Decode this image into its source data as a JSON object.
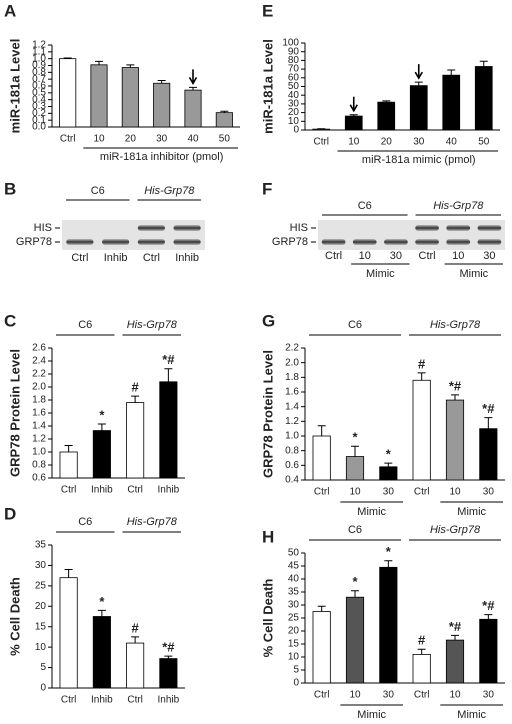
{
  "chart_data": [
    {
      "type": "bar",
      "label": "A",
      "ylabel": "miR-181a Level",
      "xlabel": "miR-181a inhibitor (pmol)",
      "categories": [
        "Ctrl",
        "10",
        "20",
        "30",
        "40",
        "50"
      ],
      "values": [
        1.0,
        0.91,
        0.87,
        0.64,
        0.54,
        0.21
      ],
      "errors": [
        0.01,
        0.05,
        0.04,
        0.04,
        0.04,
        0.02
      ],
      "colors": [
        "#ffffff",
        "#999999",
        "#999999",
        "#999999",
        "#999999",
        "#999999"
      ],
      "arrows": [
        false,
        false,
        false,
        false,
        true,
        false
      ],
      "ylim": [
        0,
        1.2
      ],
      "yticks": [
        {
          "value": 0,
          "label": "0.0"
        },
        {
          "value": 0.1,
          "label": "0.1"
        },
        {
          "value": 0.2,
          "label": "0.2"
        },
        {
          "value": 0.3,
          "label": "0.3"
        },
        {
          "value": 0.4,
          "label": "0.4"
        },
        {
          "value": 0.5,
          "label": "0.5"
        },
        {
          "value": 0.6,
          "label": "0.6"
        },
        {
          "value": 0.7,
          "label": "0.7"
        },
        {
          "value": 0.8,
          "label": "0.8"
        },
        {
          "value": 0.9,
          "label": "0.9"
        },
        {
          "value": 1,
          "label": "1.0"
        },
        {
          "value": 1.1,
          "label": "1.1"
        },
        {
          "value": 1.2,
          "label": "1.2"
        }
      ]
    },
    {
      "type": "bar",
      "label": "C",
      "ylabel": "GRP78 Protein Level",
      "categories": [
        "Ctrl",
        "Inhib",
        "Ctrl",
        "Inhib"
      ],
      "values": [
        1.0,
        1.33,
        1.76,
        2.08
      ],
      "errors": [
        0.1,
        0.1,
        0.1,
        0.2
      ],
      "colors": [
        "#ffffff",
        "#000000",
        "#ffffff",
        "#000000"
      ],
      "significance": [
        null,
        "*",
        "#",
        "*#"
      ],
      "groups": [
        {
          "name": "C6",
          "span": 2,
          "italic": false
        },
        {
          "name": "His-Grp78",
          "span": 2,
          "italic": true
        }
      ],
      "ylim": [
        0.6,
        2.6
      ],
      "yticks": [
        0.6,
        0.8,
        {
          "value": 1,
          "label": "1.0"
        },
        1.2,
        1.4,
        1.6,
        1.8,
        {
          "value": 2,
          "label": "2.0"
        },
        2.2,
        2.4,
        2.6
      ]
    },
    {
      "type": "bar",
      "label": "D",
      "ylabel": "% Cell Death",
      "categories": [
        "Ctrl",
        "Inhib",
        "Ctrl",
        "Inhib"
      ],
      "values": [
        27,
        17.5,
        11,
        7.2
      ],
      "errors": [
        2,
        1.5,
        1.5,
        0.6
      ],
      "colors": [
        "#ffffff",
        "#000000",
        "#ffffff",
        "#000000"
      ],
      "significance": [
        null,
        "*",
        "#",
        "*#"
      ],
      "groups": [
        {
          "name": "C6",
          "span": 2,
          "italic": false
        },
        {
          "name": "His-Grp78",
          "span": 2,
          "italic": true
        }
      ],
      "ylim": [
        0,
        35
      ],
      "yticks": [
        0,
        5,
        10,
        15,
        20,
        25,
        30,
        35
      ]
    },
    {
      "type": "bar",
      "label": "E",
      "ylabel": "miR-181a Level",
      "xlabel": "miR-181a mimic (pmol)",
      "categories": [
        "Ctrl",
        "10",
        "20",
        "30",
        "40",
        "50"
      ],
      "values": [
        1,
        16,
        32,
        51,
        63,
        73
      ],
      "errors": [
        0.5,
        1.5,
        1.5,
        4,
        6,
        6
      ],
      "colors": [
        "#ffffff",
        "#000000",
        "#000000",
        "#000000",
        "#000000",
        "#000000"
      ],
      "arrows": [
        false,
        true,
        false,
        true,
        false,
        false
      ],
      "ylim": [
        0,
        100
      ],
      "yticks": [
        0,
        10,
        20,
        30,
        40,
        50,
        60,
        70,
        80,
        90,
        100
      ]
    },
    {
      "type": "bar",
      "label": "G",
      "ylabel": "GRP78 Protein Level",
      "categories": [
        "Ctrl",
        "10",
        "30",
        "Ctrl",
        "10",
        "30"
      ],
      "values": [
        1.0,
        0.72,
        0.58,
        1.76,
        1.49,
        1.1
      ],
      "errors": [
        0.14,
        0.14,
        0.05,
        0.1,
        0.07,
        0.15
      ],
      "colors": [
        "#ffffff",
        "#999999",
        "#000000",
        "#ffffff",
        "#999999",
        "#000000"
      ],
      "significance": [
        null,
        "*",
        "*",
        "#",
        "*#",
        "*#"
      ],
      "groups": [
        {
          "name": "C6",
          "span": 3,
          "italic": false,
          "bracket": "Mimic"
        },
        {
          "name": "His-Grp78",
          "span": 3,
          "italic": true,
          "bracket": "Mimic"
        }
      ],
      "ylim": [
        0.4,
        2.2
      ],
      "yticks": [
        0.4,
        0.6,
        0.8,
        {
          "value": 1,
          "label": "1.0"
        },
        1.2,
        1.4,
        1.6,
        1.8,
        {
          "value": 2,
          "label": "2.0"
        },
        2.2
      ]
    },
    {
      "type": "bar",
      "label": "H",
      "ylabel": "% Cell Death",
      "categories": [
        "Ctrl",
        "10",
        "30",
        "Ctrl",
        "10",
        "30"
      ],
      "values": [
        27.5,
        33,
        44.5,
        11,
        16.5,
        24.5
      ],
      "errors": [
        2,
        2.5,
        2.5,
        2,
        1.8,
        1.8
      ],
      "colors": [
        "#ffffff",
        "#555555",
        "#000000",
        "#ffffff",
        "#555555",
        "#000000"
      ],
      "significance": [
        null,
        "*",
        "*",
        "#",
        "*#",
        "*#"
      ],
      "groups": [
        {
          "name": "C6",
          "span": 3,
          "italic": false,
          "bracket": "Mimic"
        },
        {
          "name": "His-Grp78",
          "span": 3,
          "italic": true,
          "bracket": "Mimic"
        }
      ],
      "ylim": [
        0,
        50
      ],
      "yticks": [
        0,
        5,
        10,
        15,
        20,
        25,
        30,
        35,
        40,
        45,
        50
      ]
    }
  ],
  "blots": [
    {
      "label": "B",
      "rows": [
        "HIS",
        "GRP78"
      ],
      "lanes": [
        "Ctrl",
        "Inhib",
        "Ctrl",
        "Inhib"
      ],
      "groups": [
        {
          "name": "C6",
          "span": 2,
          "italic": false
        },
        {
          "name": "His-Grp78",
          "span": 2,
          "italic": true
        }
      ]
    },
    {
      "label": "F",
      "rows": [
        "HIS",
        "GRP78"
      ],
      "lanes": [
        "Ctrl",
        "10",
        "30",
        "Ctrl",
        "10",
        "30"
      ],
      "groups": [
        {
          "name": "C6",
          "span": 3,
          "italic": false,
          "bracket": "Mimic"
        },
        {
          "name": "His-Grp78",
          "span": 3,
          "italic": true,
          "bracket": "Mimic"
        }
      ]
    }
  ]
}
